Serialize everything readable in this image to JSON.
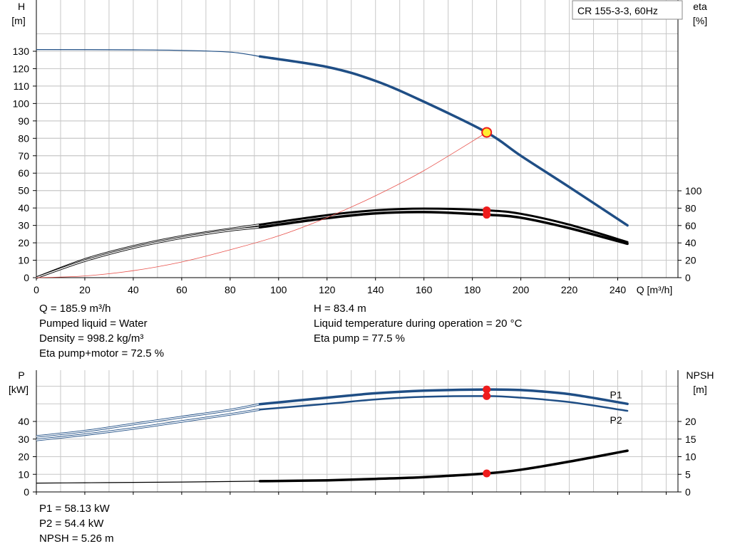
{
  "model_label": "CR 155-3-3, 60Hz",
  "colors": {
    "head": "#1f4e85",
    "power": "#1f4e85",
    "eta": "#000000",
    "system": "#e8504a",
    "marker": "#ee1c1c",
    "operating_point": "#ffee33",
    "grid": "#c8c8c8"
  },
  "chart_data": [
    {
      "id": "head-efficiency",
      "type": "line",
      "title": "",
      "xlabel": "Q [m³/h]",
      "xlim": [
        0,
        260
      ],
      "x_ticks": [
        0,
        20,
        40,
        60,
        80,
        100,
        120,
        140,
        160,
        180,
        200,
        220,
        240
      ],
      "ylabel_left": [
        "H",
        "[m]"
      ],
      "ylim_left": [
        0,
        140
      ],
      "y_ticks_left": [
        0,
        10,
        20,
        30,
        40,
        50,
        60,
        70,
        80,
        90,
        100,
        110,
        120,
        130
      ],
      "ylabel_right": [
        "eta",
        "[%]"
      ],
      "ylim_right": [
        0,
        140
      ],
      "y_ticks_right": [
        0,
        20,
        40,
        60,
        80,
        100
      ],
      "grid": true,
      "series": [
        {
          "key": "head",
          "axis": "left",
          "thin": [
            [
              0,
              131
            ],
            [
              40,
              130.8
            ],
            [
              60,
              130.5
            ],
            [
              80,
              129.5
            ],
            [
              92.3,
              127
            ]
          ],
          "thick": [
            [
              92.3,
              127
            ],
            [
              120,
              121
            ],
            [
              140,
              113
            ],
            [
              160,
              101
            ],
            [
              185.9,
              83.4
            ],
            [
              200,
              70
            ],
            [
              220,
              52
            ],
            [
              244,
              30
            ]
          ]
        },
        {
          "key": "eta_pump",
          "axis": "right",
          "thin": [
            [
              0,
              0
            ],
            [
              20,
              21
            ],
            [
              40,
              36
            ],
            [
              60,
              47.5
            ],
            [
              80,
              56
            ],
            [
              92.3,
              61
            ]
          ],
          "thick": [
            [
              92.3,
              61
            ],
            [
              120,
              72
            ],
            [
              140,
              77.5
            ],
            [
              160,
              79.5
            ],
            [
              185.9,
              77.5
            ],
            [
              200,
              73.5
            ],
            [
              220,
              61
            ],
            [
              244,
              41
            ]
          ]
        },
        {
          "key": "eta_pump_motor",
          "axis": "right",
          "thin": [
            [
              0,
              0
            ],
            [
              20,
              19.5
            ],
            [
              40,
              34.5
            ],
            [
              60,
              46
            ],
            [
              80,
              54.5
            ],
            [
              92.3,
              58
            ]
          ],
          "thick": [
            [
              92.3,
              58
            ],
            [
              120,
              68.5
            ],
            [
              140,
              74
            ],
            [
              160,
              75.5
            ],
            [
              185.9,
              72.5
            ],
            [
              200,
              69
            ],
            [
              220,
              57
            ],
            [
              244,
              39
            ]
          ]
        },
        {
          "key": "system_curve",
          "axis": "left",
          "thin": [
            [
              0,
              0
            ],
            [
              20,
              1
            ],
            [
              40,
              4
            ],
            [
              60,
              9
            ],
            [
              80,
              16
            ],
            [
              100,
              24
            ],
            [
              120,
              34.5
            ],
            [
              140,
              47
            ],
            [
              160,
              61.5
            ],
            [
              185.9,
              83.4
            ]
          ]
        }
      ],
      "markers": [
        {
          "axis": "left",
          "x": 185.9,
          "y": 83.4,
          "style": "operating-point"
        },
        {
          "axis": "right",
          "x": 185.9,
          "y": 77.5,
          "style": "red-dot"
        },
        {
          "axis": "right",
          "x": 185.9,
          "y": 72.5,
          "style": "red-dot"
        }
      ]
    },
    {
      "id": "power-npsh",
      "type": "line",
      "title": "",
      "xlim": [
        0,
        260
      ],
      "ylabel_left": [
        "P",
        "[kW]"
      ],
      "ylim_left": [
        0,
        60
      ],
      "y_ticks_left": [
        0,
        10,
        20,
        30,
        40
      ],
      "ylabel_right": [
        "NPSH",
        "[m]"
      ],
      "ylim_right": [
        0,
        30
      ],
      "y_ticks_right": [
        0,
        5,
        10,
        15,
        20
      ],
      "grid": true,
      "series": [
        {
          "key": "P1",
          "name": "P1",
          "axis": "left",
          "thin": [
            [
              0,
              31.5
            ],
            [
              20,
              34.5
            ],
            [
              40,
              38.5
            ],
            [
              60,
              42.5
            ],
            [
              80,
              46.5
            ],
            [
              92.3,
              49.8
            ]
          ],
          "thick": [
            [
              92.3,
              49.8
            ],
            [
              120,
              53.5
            ],
            [
              140,
              56
            ],
            [
              160,
              57.5
            ],
            [
              185.9,
              58.13
            ],
            [
              200,
              57.8
            ],
            [
              220,
              55.5
            ],
            [
              244,
              50
            ]
          ]
        },
        {
          "key": "P2",
          "name": "P2",
          "axis": "left",
          "thin": [
            [
              0,
              29.5
            ],
            [
              20,
              32.5
            ],
            [
              40,
              36
            ],
            [
              60,
              40
            ],
            [
              80,
              44
            ],
            [
              92.3,
              46.8
            ]
          ],
          "thick": [
            [
              92.3,
              46.8
            ],
            [
              120,
              50
            ],
            [
              140,
              52.5
            ],
            [
              160,
              54
            ],
            [
              185.9,
              54.4
            ],
            [
              200,
              53.5
            ],
            [
              220,
              51
            ],
            [
              244,
              46
            ]
          ]
        },
        {
          "key": "NPSH",
          "axis": "right",
          "thin": [
            [
              0,
              2.5
            ],
            [
              20,
              2.6
            ],
            [
              40,
              2.7
            ],
            [
              60,
              2.8
            ],
            [
              80,
              2.95
            ],
            [
              92.3,
              3.05
            ]
          ],
          "thick": [
            [
              92.3,
              3.05
            ],
            [
              120,
              3.3
            ],
            [
              140,
              3.7
            ],
            [
              160,
              4.2
            ],
            [
              185.9,
              5.26
            ],
            [
              200,
              6.3
            ],
            [
              220,
              8.6
            ],
            [
              244,
              11.7
            ]
          ]
        }
      ],
      "markers": [
        {
          "axis": "left",
          "x": 185.9,
          "y": 58.13,
          "style": "red-dot"
        },
        {
          "axis": "left",
          "x": 185.9,
          "y": 54.4,
          "style": "red-dot"
        },
        {
          "axis": "right",
          "x": 185.9,
          "y": 5.26,
          "style": "red-dot"
        }
      ]
    }
  ],
  "info_top_left": [
    "Q = 185.9 m³/h",
    "Pumped liquid = Water",
    "Density = 998.2 kg/m³",
    "Eta pump+motor = 72.5 %"
  ],
  "info_top_right": [
    "H = 83.4 m",
    "Liquid temperature during operation = 20 °C",
    "Eta pump = 77.5 %"
  ],
  "info_bottom": [
    "P1 = 58.13 kW",
    "P2 = 54.4 kW",
    "NPSH = 5.26 m"
  ]
}
